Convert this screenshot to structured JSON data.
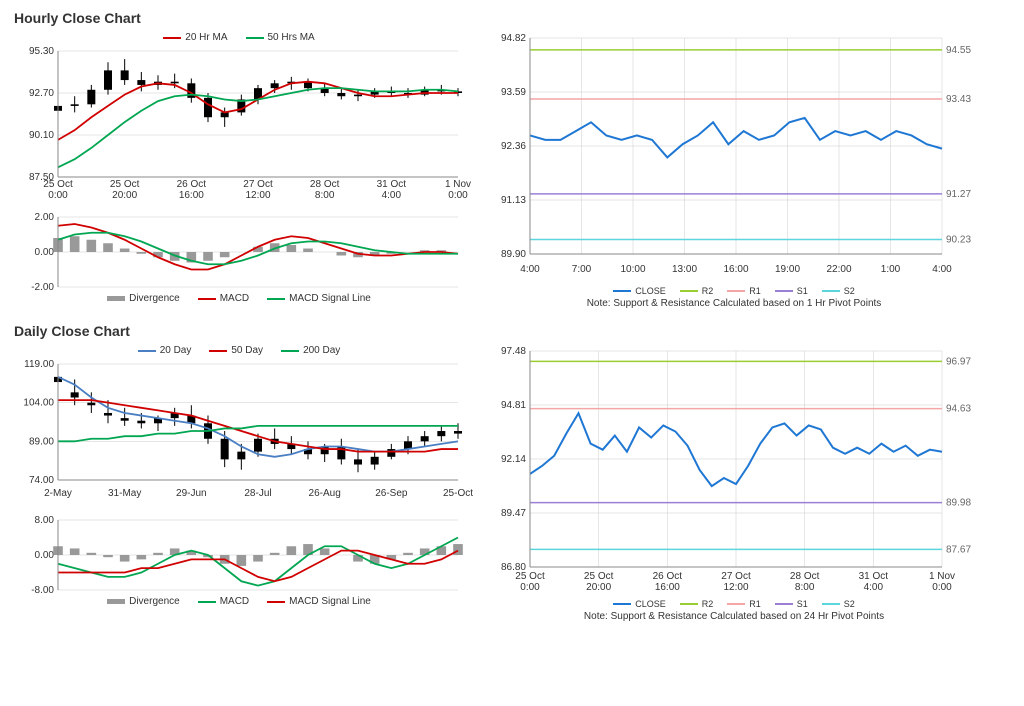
{
  "hourly": {
    "title": "Hourly Close Chart",
    "price": {
      "legend": [
        {
          "label": "20 Hr MA",
          "color": "#d00000"
        },
        {
          "label": "50 Hrs MA",
          "color": "#00a651"
        }
      ],
      "ylim": [
        87.5,
        95.3
      ],
      "yticks": [
        87.5,
        90.1,
        92.7,
        95.3
      ],
      "xticks": [
        "25 Oct 0:00",
        "25 Oct 20:00",
        "26 Oct 16:00",
        "27 Oct 12:00",
        "28 Oct 8:00",
        "31 Oct 4:00",
        "1 Nov 0:00"
      ],
      "ma20": [
        89.8,
        90.4,
        91.2,
        91.9,
        92.6,
        93.1,
        93.3,
        93.2,
        92.7,
        92.0,
        91.5,
        91.7,
        92.3,
        92.9,
        93.3,
        93.4,
        93.3,
        93.0,
        92.7,
        92.5,
        92.5,
        92.6,
        92.7,
        92.7,
        92.7
      ],
      "ma50": [
        88.1,
        88.6,
        89.3,
        90.1,
        90.9,
        91.6,
        92.2,
        92.5,
        92.6,
        92.5,
        92.3,
        92.2,
        92.3,
        92.5,
        92.7,
        92.9,
        93.0,
        93.0,
        92.9,
        92.8,
        92.8,
        92.8,
        92.9,
        92.9,
        92.8
      ],
      "ohlc": [
        [
          91.6,
          92.2,
          91.3,
          91.9
        ],
        [
          91.9,
          92.5,
          91.5,
          92.0
        ],
        [
          92.0,
          93.2,
          91.8,
          92.9
        ],
        [
          92.9,
          94.6,
          92.6,
          94.1
        ],
        [
          94.1,
          94.8,
          93.2,
          93.5
        ],
        [
          93.5,
          94.0,
          92.8,
          93.2
        ],
        [
          93.2,
          93.8,
          92.9,
          93.4
        ],
        [
          93.4,
          93.9,
          93.0,
          93.3
        ],
        [
          93.3,
          93.6,
          92.1,
          92.4
        ],
        [
          92.4,
          92.7,
          90.9,
          91.2
        ],
        [
          91.2,
          91.8,
          90.6,
          91.5
        ],
        [
          91.5,
          92.6,
          91.3,
          92.3
        ],
        [
          92.3,
          93.2,
          92.0,
          93.0
        ],
        [
          93.0,
          93.5,
          92.7,
          93.3
        ],
        [
          93.3,
          93.7,
          92.9,
          93.4
        ],
        [
          93.4,
          93.6,
          92.8,
          93.0
        ],
        [
          93.0,
          93.3,
          92.5,
          92.7
        ],
        [
          92.7,
          93.0,
          92.3,
          92.5
        ],
        [
          92.5,
          92.9,
          92.2,
          92.6
        ],
        [
          92.6,
          93.0,
          92.4,
          92.8
        ],
        [
          92.8,
          93.1,
          92.5,
          92.7
        ],
        [
          92.7,
          93.0,
          92.4,
          92.6
        ],
        [
          92.6,
          93.1,
          92.5,
          92.9
        ],
        [
          92.9,
          93.2,
          92.6,
          92.8
        ],
        [
          92.8,
          93.0,
          92.5,
          92.7
        ]
      ],
      "grid_color": "#cccccc",
      "bg": "#ffffff"
    },
    "macd": {
      "ylim": [
        -2.0,
        2.0
      ],
      "yticks": [
        -2.0,
        0.0,
        2.0
      ],
      "legend": [
        {
          "label": "Divergence",
          "color": "#999999",
          "thick": true
        },
        {
          "label": "MACD",
          "color": "#d00000"
        },
        {
          "label": "MACD Signal Line",
          "color": "#00a651"
        }
      ],
      "hist": [
        0.8,
        0.9,
        0.7,
        0.5,
        0.2,
        -0.1,
        -0.3,
        -0.5,
        -0.6,
        -0.5,
        -0.3,
        0.0,
        0.3,
        0.5,
        0.4,
        0.2,
        0.0,
        -0.2,
        -0.3,
        -0.2,
        -0.1,
        0.0,
        0.1,
        0.1,
        0.0
      ],
      "macd": [
        1.5,
        1.6,
        1.4,
        1.1,
        0.7,
        0.2,
        -0.3,
        -0.7,
        -1.0,
        -1.0,
        -0.7,
        -0.2,
        0.3,
        0.7,
        0.9,
        0.8,
        0.5,
        0.2,
        -0.1,
        -0.2,
        -0.2,
        -0.1,
        0.0,
        0.0,
        -0.1
      ],
      "signal": [
        0.7,
        1.0,
        1.1,
        1.1,
        0.9,
        0.6,
        0.2,
        -0.2,
        -0.5,
        -0.7,
        -0.7,
        -0.5,
        -0.2,
        0.2,
        0.5,
        0.6,
        0.6,
        0.5,
        0.3,
        0.1,
        0.0,
        -0.1,
        -0.1,
        -0.1,
        -0.1
      ]
    },
    "sr": {
      "ylim": [
        89.9,
        94.82
      ],
      "yticks": [
        89.9,
        91.13,
        92.36,
        93.59,
        94.82
      ],
      "xticks": [
        "4:00",
        "7:00",
        "10:00",
        "13:00",
        "16:00",
        "19:00",
        "22:00",
        "1:00",
        "4:00"
      ],
      "close": [
        92.6,
        92.5,
        92.5,
        92.7,
        92.9,
        92.6,
        92.5,
        92.6,
        92.5,
        92.1,
        92.4,
        92.6,
        92.9,
        92.4,
        92.7,
        92.5,
        92.6,
        92.9,
        93.0,
        92.5,
        92.7,
        92.6,
        92.7,
        92.5,
        92.7,
        92.6,
        92.4,
        92.3
      ],
      "close_color": "#1f77d4",
      "levels": [
        {
          "name": "R2",
          "value": 94.55,
          "color": "#9acd32"
        },
        {
          "name": "R1",
          "value": 93.43,
          "color": "#f4a6a6"
        },
        {
          "name": "S1",
          "value": 91.27,
          "color": "#9b7fd4"
        },
        {
          "name": "S2",
          "value": 90.23,
          "color": "#5dd5dd"
        }
      ],
      "legend": [
        {
          "label": "CLOSE",
          "color": "#1f77d4"
        },
        {
          "label": "R2",
          "color": "#9acd32"
        },
        {
          "label": "R1",
          "color": "#f4a6a6"
        },
        {
          "label": "S1",
          "color": "#9b7fd4"
        },
        {
          "label": "S2",
          "color": "#5dd5dd"
        }
      ],
      "note": "Note: Support & Resistance Calculated based on 1 Hr Pivot Points"
    }
  },
  "daily": {
    "title": "Daily Close Chart",
    "price": {
      "legend": [
        {
          "label": "20 Day",
          "color": "#4a7fc4"
        },
        {
          "label": "50 Day",
          "color": "#d00000"
        },
        {
          "label": "200 Day",
          "color": "#00a651"
        }
      ],
      "ylim": [
        74.0,
        119.0
      ],
      "yticks": [
        74.0,
        89.0,
        104.0,
        119.0
      ],
      "xticks": [
        "2-May",
        "31-May",
        "29-Jun",
        "28-Jul",
        "26-Aug",
        "26-Sep",
        "25-Oct"
      ],
      "ma20": [
        114,
        111,
        106,
        102,
        100,
        99,
        98,
        97,
        96,
        94,
        91,
        87,
        84,
        83,
        84,
        86,
        87,
        87,
        86,
        85,
        85,
        86,
        87,
        88,
        89
      ],
      "ma50": [
        105,
        105,
        105,
        104,
        103,
        102,
        101,
        100,
        99,
        97,
        95,
        93,
        91,
        89,
        88,
        87,
        86,
        86,
        85,
        85,
        85,
        85,
        85,
        86,
        86
      ],
      "ma200": [
        89,
        89,
        90,
        90,
        91,
        91,
        92,
        92,
        93,
        93,
        94,
        94,
        95,
        95,
        95,
        95,
        95,
        95,
        95,
        95,
        95,
        95,
        95,
        95,
        95
      ],
      "ohlc": [
        [
          112,
          117,
          108,
          114
        ],
        [
          108,
          113,
          103,
          106
        ],
        [
          104,
          108,
          100,
          103
        ],
        [
          100,
          105,
          96,
          99
        ],
        [
          98,
          102,
          95,
          97
        ],
        [
          97,
          100,
          94,
          96
        ],
        [
          96,
          99,
          93,
          98
        ],
        [
          98,
          102,
          95,
          100
        ],
        [
          99,
          103,
          94,
          96
        ],
        [
          96,
          99,
          88,
          90
        ],
        [
          90,
          93,
          79,
          82
        ],
        [
          82,
          88,
          78,
          85
        ],
        [
          85,
          92,
          83,
          90
        ],
        [
          90,
          94,
          86,
          88
        ],
        [
          88,
          91,
          84,
          86
        ],
        [
          86,
          89,
          82,
          84
        ],
        [
          84,
          88,
          81,
          87
        ],
        [
          87,
          90,
          80,
          82
        ],
        [
          82,
          86,
          77,
          80
        ],
        [
          80,
          85,
          78,
          83
        ],
        [
          83,
          88,
          82,
          86
        ],
        [
          86,
          91,
          84,
          89
        ],
        [
          89,
          93,
          87,
          91
        ],
        [
          91,
          95,
          89,
          93
        ],
        [
          93,
          96,
          90,
          92
        ]
      ]
    },
    "macd": {
      "ylim": [
        -8.0,
        8.0
      ],
      "yticks": [
        -8.0,
        0.0,
        8.0
      ],
      "legend": [
        {
          "label": "Divergence",
          "color": "#999999",
          "thick": true
        },
        {
          "label": "MACD",
          "color": "#00a651"
        },
        {
          "label": "MACD Signal Line",
          "color": "#d00000"
        }
      ],
      "hist": [
        2.0,
        1.5,
        0.5,
        -0.5,
        -1.5,
        -1.0,
        0.5,
        1.5,
        1.0,
        -0.5,
        -2.0,
        -2.5,
        -1.5,
        0.5,
        2.0,
        2.5,
        1.5,
        0.0,
        -1.5,
        -2.0,
        -1.0,
        0.5,
        1.5,
        2.0,
        2.5
      ],
      "macd": [
        -2,
        -3,
        -4,
        -5,
        -5,
        -4,
        -2,
        0,
        1,
        0,
        -3,
        -6,
        -7,
        -6,
        -3,
        0,
        2,
        2,
        0,
        -2,
        -3,
        -2,
        0,
        2,
        4
      ],
      "signal": [
        -4,
        -4,
        -4,
        -4,
        -4,
        -3,
        -3,
        -2,
        -1,
        -1,
        -1,
        -3,
        -5,
        -6,
        -5,
        -3,
        -1,
        1,
        1,
        0,
        -1,
        -2,
        -2,
        -1,
        1
      ]
    },
    "sr": {
      "ylim": [
        86.8,
        97.48
      ],
      "yticks": [
        86.8,
        89.47,
        92.14,
        94.81,
        97.48
      ],
      "xticks": [
        "25 Oct 0:00",
        "25 Oct 20:00",
        "26 Oct 16:00",
        "27 Oct 12:00",
        "28 Oct 8:00",
        "31 Oct 4:00",
        "1 Nov 0:00"
      ],
      "close": [
        91.4,
        91.8,
        92.3,
        93.4,
        94.4,
        92.9,
        92.6,
        93.3,
        92.5,
        93.7,
        93.2,
        93.8,
        93.5,
        92.8,
        91.6,
        90.8,
        91.2,
        90.9,
        91.8,
        92.9,
        93.7,
        93.9,
        93.3,
        93.8,
        93.6,
        92.7,
        92.4,
        92.7,
        92.4,
        92.9,
        92.5,
        92.8,
        92.3,
        92.6,
        92.5
      ],
      "close_color": "#1f77d4",
      "levels": [
        {
          "name": "R2",
          "value": 96.97,
          "color": "#9acd32"
        },
        {
          "name": "R1",
          "value": 94.63,
          "color": "#f4a6a6"
        },
        {
          "name": "S1",
          "value": 89.98,
          "color": "#9b7fd4"
        },
        {
          "name": "S2",
          "value": 87.67,
          "color": "#5dd5dd"
        }
      ],
      "legend": [
        {
          "label": "CLOSE",
          "color": "#1f77d4"
        },
        {
          "label": "R2",
          "color": "#9acd32"
        },
        {
          "label": "R1",
          "color": "#f4a6a6"
        },
        {
          "label": "S1",
          "color": "#9b7fd4"
        },
        {
          "label": "S2",
          "color": "#5dd5dd"
        }
      ],
      "note": "Note:  Support & Resistance Calculated based on 24 Hr Pivot Points"
    }
  }
}
